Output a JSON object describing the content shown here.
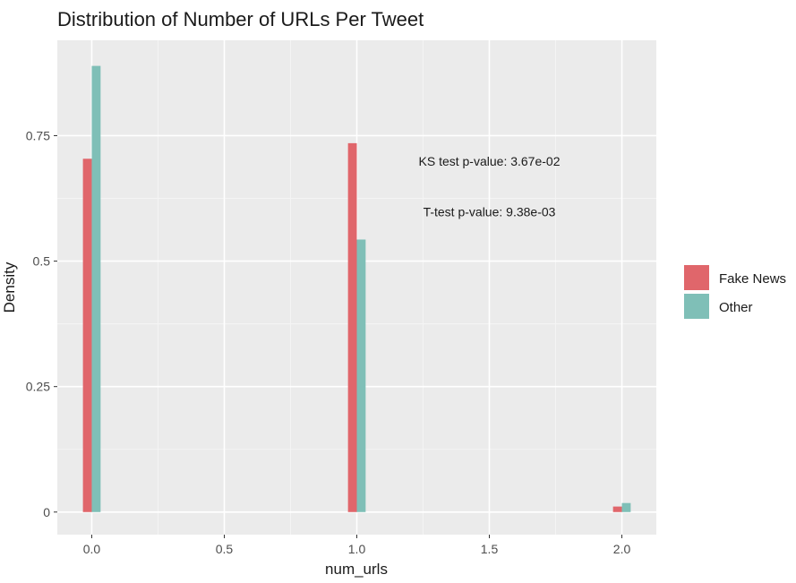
{
  "chart_data": {
    "type": "bar",
    "title": "Distribution of Number of URLs Per Tweet",
    "xlabel": "num_urls",
    "ylabel": "Density",
    "xlim": [
      -0.13,
      2.13
    ],
    "ylim": [
      -0.045,
      0.94
    ],
    "x_ticks": [
      0.0,
      0.5,
      1.0,
      1.5,
      2.0
    ],
    "x_tick_labels": [
      "0.0",
      "0.5",
      "1.0",
      "1.5",
      "2.0"
    ],
    "y_ticks": [
      0,
      0.25,
      0.5,
      0.75
    ],
    "y_tick_labels": [
      "0",
      "0.25",
      "0.5",
      "0.75"
    ],
    "x": [
      0,
      1,
      2
    ],
    "series": [
      {
        "name": "Fake News",
        "color": "#E0666B",
        "values": [
          0.704,
          0.735,
          0.011
        ]
      },
      {
        "name": "Other",
        "color": "#7FBFB7",
        "values": [
          0.889,
          0.543,
          0.018
        ]
      }
    ],
    "annotations": [
      {
        "text": "KS test p-value: 3.67e-02",
        "x": 1.5,
        "y": 0.699
      },
      {
        "text": "T-test p-value: 9.38e-03",
        "x": 1.5,
        "y": 0.598
      }
    ],
    "grid": true,
    "legend": "right"
  }
}
